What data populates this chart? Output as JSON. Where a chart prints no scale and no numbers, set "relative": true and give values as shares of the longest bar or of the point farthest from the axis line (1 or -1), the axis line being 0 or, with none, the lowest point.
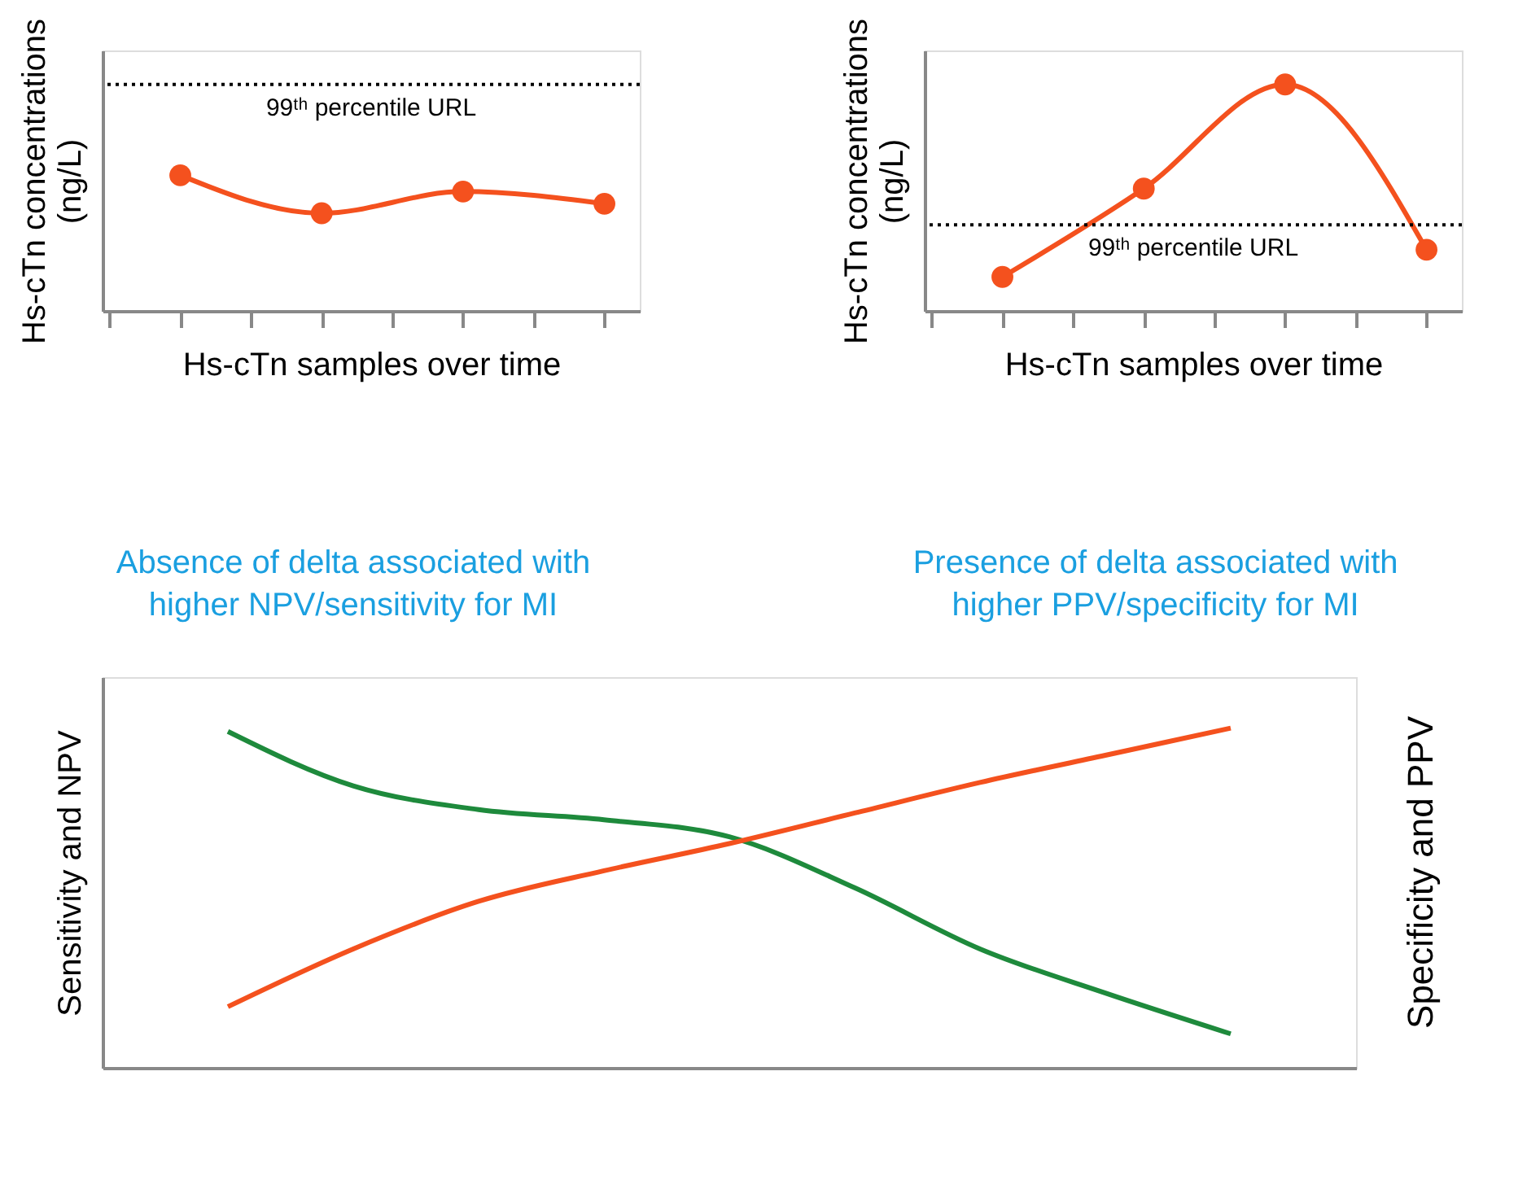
{
  "chart_data": [
    {
      "type": "line",
      "relative": true,
      "categories": [
        null,
        null,
        null,
        null
      ],
      "xlabel": "Hs-cTn samples over time",
      "ylabel": "Hs-cTn concentrations (ng/L)",
      "marker": "circle",
      "tick_labels": false,
      "series": [
        {
          "color": "#f4511e",
          "values": [
            1.0,
            0.72,
            0.88,
            0.79
          ]
        }
      ],
      "ref_lines": [
        {
          "axis": "y",
          "value": 1.67,
          "label": "99ᵗʰ percentile URL",
          "color": "#000000",
          "line_style": "dotted"
        }
      ]
    },
    {
      "type": "line",
      "relative": true,
      "categories": [
        null,
        null,
        null,
        null
      ],
      "xlabel": "Hs-cTn samples over time",
      "ylabel": "Hs-cTn concentrations (ng/L)",
      "marker": "circle",
      "tick_labels": false,
      "series": [
        {
          "color": "#f4511e",
          "values": [
            0.15,
            0.54,
            1.0,
            0.27
          ]
        }
      ],
      "ref_lines": [
        {
          "axis": "y",
          "value": 0.38,
          "label": "99ᵗʰ percentile URL",
          "color": "#000000",
          "line_style": "dotted"
        }
      ]
    },
    {
      "type": "line",
      "relative": true,
      "categories": [
        null,
        null,
        null,
        null,
        null,
        null,
        null,
        null,
        null
      ],
      "ylabel": "Sensitivity and NPV",
      "y2label": "Specificity and PPV",
      "marker": "none",
      "tick_labels": false,
      "annotations": [
        "Absence of delta associated with higher NPV/sensitivity for MI",
        "Presence of delta associated with higher PPV/specificity for MI"
      ],
      "series": [
        {
          "color": "#1e8a3c",
          "values": [
            0.99,
            0.83,
            0.76,
            0.73,
            0.68,
            0.53,
            0.35,
            0.22,
            0.1
          ]
        },
        {
          "color": "#f4511e",
          "values": [
            0.18,
            0.35,
            0.49,
            0.58,
            0.66,
            0.75,
            0.84,
            0.92,
            1.0
          ]
        }
      ]
    }
  ]
}
